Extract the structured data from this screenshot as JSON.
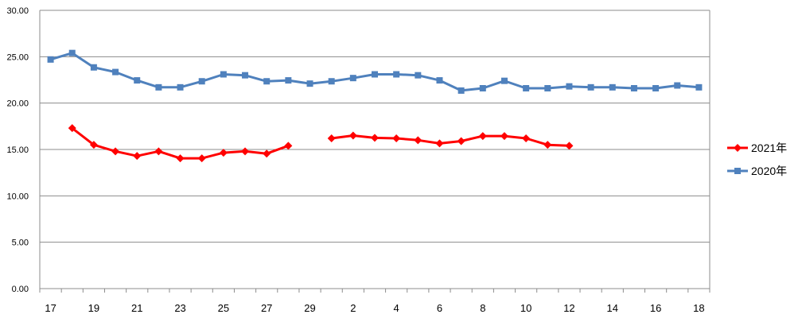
{
  "chart_data": {
    "type": "line",
    "title": "",
    "xlabel": "",
    "ylabel": "",
    "ylim": [
      0,
      30
    ],
    "y_ticks": [
      "0.00",
      "5.00",
      "10.00",
      "15.00",
      "20.00",
      "25.00",
      "30.00"
    ],
    "x_tick_labels": [
      "17",
      "19",
      "21",
      "23",
      "25",
      "27",
      "29",
      "2",
      "4",
      "6",
      "8",
      "10",
      "12",
      "14",
      "16",
      "18"
    ],
    "categories": [
      "17",
      "18",
      "19",
      "20",
      "21",
      "22",
      "23",
      "24",
      "25",
      "26",
      "27",
      "28",
      "29",
      "1",
      "2",
      "3",
      "4",
      "5",
      "6",
      "7",
      "8",
      "9",
      "10",
      "11",
      "12",
      "13",
      "14",
      "15",
      "16",
      "17",
      "18"
    ],
    "grid": "horizontal",
    "legend_position": "right",
    "series": [
      {
        "name": "2021年",
        "color": "#ff0000",
        "marker": "diamond",
        "values": [
          null,
          17.3,
          15.5,
          14.8,
          14.3,
          14.8,
          14.05,
          14.05,
          14.65,
          14.8,
          14.55,
          15.4,
          null,
          16.2,
          16.5,
          16.25,
          16.2,
          16.0,
          15.65,
          15.9,
          16.45,
          16.45,
          16.2,
          15.5,
          15.4,
          null,
          null,
          null,
          null,
          null,
          null
        ]
      },
      {
        "name": "2020年",
        "color": "#4f81bd",
        "marker": "square",
        "values": [
          24.7,
          25.4,
          23.85,
          23.35,
          22.45,
          21.7,
          21.7,
          22.35,
          23.1,
          23.0,
          22.35,
          22.45,
          22.1,
          22.35,
          22.7,
          23.1,
          23.1,
          23.0,
          22.45,
          21.35,
          21.6,
          22.4,
          21.6,
          21.6,
          21.8,
          21.7,
          21.7,
          21.6,
          21.6,
          21.9,
          21.7
        ]
      }
    ]
  }
}
